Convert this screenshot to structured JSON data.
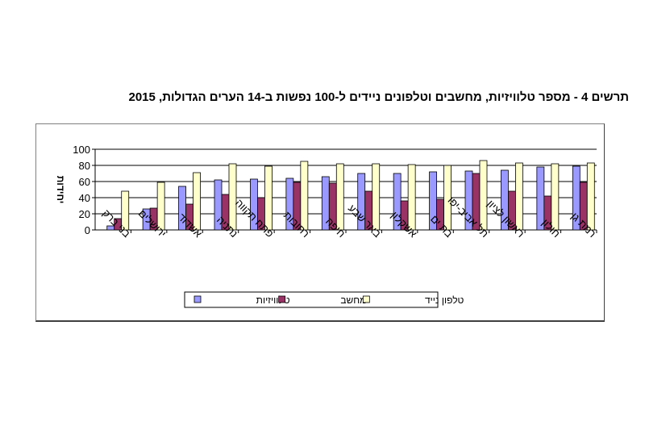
{
  "chart_data": {
    "type": "bar",
    "title": "תרשים 4 - מספר טלוויזיות, מחשבים וטלפונים ניידים ל-100 נפשות ב-14 הערים הגדולות, 2015",
    "ylabel": "יחידות",
    "xlabel": "",
    "ylim": [
      0,
      100
    ],
    "yticks": [
      0,
      20,
      40,
      60,
      80,
      100
    ],
    "grid": true,
    "legend_position": "bottom",
    "categories": [
      "בני ברק",
      "ירושלים",
      "אשדוד",
      "נתניה",
      "פתח תקווה",
      "רחובות",
      "חיפה",
      "באר שבע",
      "אשקלון",
      "בת ים",
      "תל אביב-יפו",
      "ראשון לציון",
      "חולון",
      "רמת גן"
    ],
    "series": [
      {
        "name": "טלוויזיות",
        "color": "#9999ff",
        "values": [
          5,
          26,
          54,
          62,
          63,
          64,
          66,
          70,
          70,
          72,
          73,
          74,
          78,
          79
        ]
      },
      {
        "name": "מחשב",
        "color": "#993366",
        "values": [
          14,
          27,
          32,
          44,
          40,
          59,
          58,
          48,
          36,
          38,
          70,
          48,
          42,
          59
        ]
      },
      {
        "name": "טלפון נייד",
        "color": "#ffffcc",
        "values": [
          48,
          59,
          71,
          82,
          79,
          85,
          82,
          82,
          81,
          80,
          86,
          83,
          82,
          83
        ]
      }
    ]
  }
}
